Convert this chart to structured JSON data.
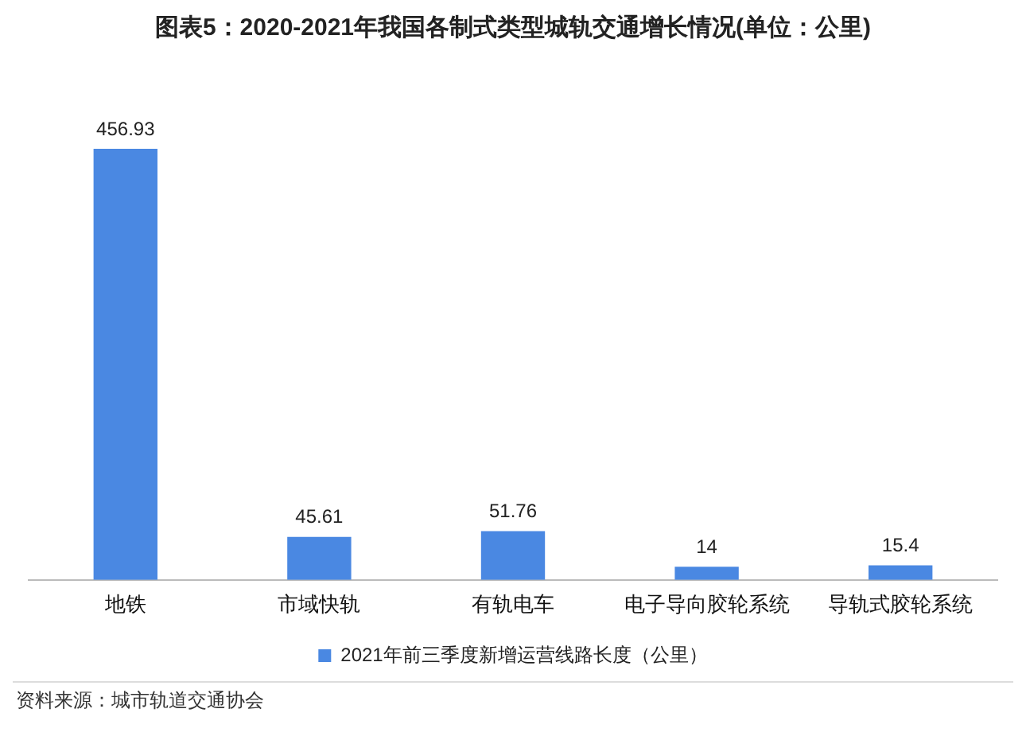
{
  "chart_data": {
    "type": "bar",
    "title": "图表5：2020-2021年我国各制式类型城轨交通增长情况(单位：公里)",
    "categories": [
      "地铁",
      "市域快轨",
      "有轨电车",
      "电子导向胶轮系统",
      "导轨式胶轮系统"
    ],
    "series": [
      {
        "name": "2021年前三季度新增运营线路长度（公里）",
        "color": "#4a88e2",
        "values": [
          456.93,
          45.61,
          51.76,
          14,
          15.4
        ]
      }
    ],
    "data_labels": true,
    "legend": "bottom",
    "grid": false,
    "tick_labels": "x",
    "annotations": [
      "资料来源：城市轨道交通协会"
    ]
  }
}
